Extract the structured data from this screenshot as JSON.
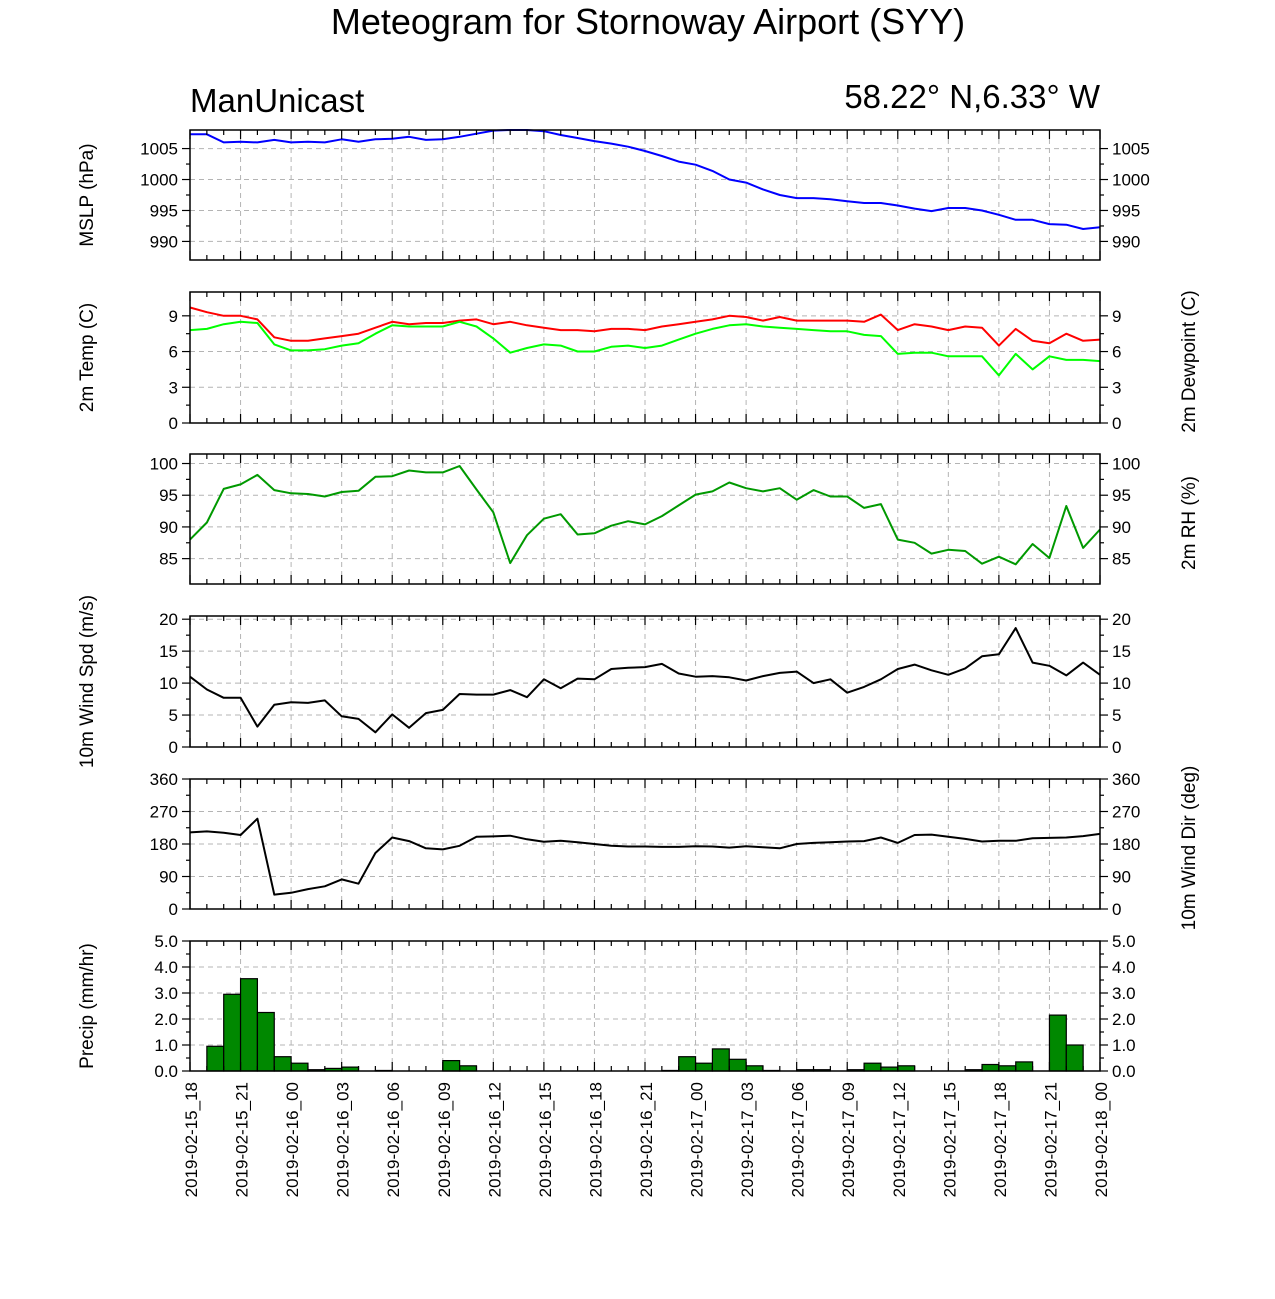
{
  "title": "Meteogram for Stornoway Airport (SYY)",
  "model": "ManUnicast",
  "location": "58.22° N,6.33° W",
  "colors": {
    "mslp": "#0000ff",
    "temp": "#ff0000",
    "dewpoint": "#00ff00",
    "rh": "#009900",
    "wind": "#000000",
    "precip": "#008800"
  },
  "chart_data": {
    "type": "line",
    "x_labels": [
      "2019-02-15_18",
      "2019-02-15_21",
      "2019-02-16_00",
      "2019-02-16_03",
      "2019-02-16_06",
      "2019-02-16_09",
      "2019-02-16_12",
      "2019-02-16_15",
      "2019-02-16_18",
      "2019-02-16_21",
      "2019-02-17_00",
      "2019-02-17_03",
      "2019-02-17_06",
      "2019-02-17_09",
      "2019-02-17_12",
      "2019-02-17_15",
      "2019-02-17_18",
      "2019-02-17_21",
      "2019-02-18_00"
    ],
    "x_range_hours": [
      0,
      54
    ],
    "grid": true,
    "panels": [
      {
        "id": "mslp",
        "ylabel": "MSLP (hPa)",
        "ylim": [
          987,
          1008
        ],
        "yticks": [
          990,
          995,
          1000,
          1005
        ],
        "series": [
          {
            "color": "#0000ff",
            "x": [
              0,
              1,
              2,
              3,
              4,
              5,
              6,
              7,
              8,
              9,
              10,
              11,
              12,
              13,
              14,
              15,
              16,
              17,
              18,
              19,
              20,
              21,
              22,
              23,
              24,
              25,
              26,
              27,
              28,
              29,
              30,
              31,
              32,
              33,
              34,
              35,
              36,
              37,
              38,
              39,
              40,
              41,
              42,
              43,
              44,
              45,
              46,
              47,
              48,
              49,
              50,
              51,
              52,
              53,
              54
            ],
            "values": [
              1007.3,
              1007.3,
              1006.0,
              1006.1,
              1006.0,
              1006.4,
              1006.0,
              1006.1,
              1006.0,
              1006.5,
              1006.1,
              1006.5,
              1006.6,
              1006.9,
              1006.4,
              1006.5,
              1006.9,
              1007.4,
              1007.9,
              1008.0,
              1008.0,
              1007.8,
              1007.2,
              1006.7,
              1006.2,
              1005.8,
              1005.3,
              1004.6,
              1003.8,
              1002.9,
              1002.4,
              1001.4,
              1000.0,
              999.5,
              998.4,
              997.5,
              997.0,
              997.0,
              996.8,
              996.5,
              996.2,
              996.2,
              995.8,
              995.3,
              994.9,
              995.4,
              995.4,
              995.0,
              994.3,
              993.5,
              993.5,
              992.8,
              992.7,
              992.0,
              992.3
            ]
          }
        ]
      },
      {
        "id": "temp",
        "ylabel": "2m Temp (C)",
        "ylabel_right": "2m Dewpoint (C)",
        "ylim": [
          0,
          11
        ],
        "yticks": [
          0,
          3,
          6,
          9
        ],
        "series": [
          {
            "color": "#ff0000",
            "x": [
              0,
              1,
              2,
              3,
              4,
              5,
              6,
              7,
              8,
              9,
              10,
              11,
              12,
              13,
              14,
              15,
              16,
              17,
              18,
              19,
              20,
              21,
              22,
              23,
              24,
              25,
              26,
              27,
              28,
              29,
              30,
              31,
              32,
              33,
              34,
              35,
              36,
              37,
              38,
              39,
              40,
              41,
              42,
              43,
              44,
              45,
              46,
              47,
              48,
              49,
              50,
              51,
              52,
              53,
              54
            ],
            "values": [
              9.7,
              9.3,
              9.0,
              9.0,
              8.7,
              7.2,
              6.9,
              6.9,
              7.1,
              7.3,
              7.5,
              8.0,
              8.5,
              8.3,
              8.4,
              8.4,
              8.6,
              8.7,
              8.3,
              8.5,
              8.2,
              8.0,
              7.8,
              7.8,
              7.7,
              7.9,
              7.9,
              7.8,
              8.1,
              8.3,
              8.5,
              8.7,
              9.0,
              8.9,
              8.6,
              8.9,
              8.6,
              8.6,
              8.6,
              8.6,
              8.5,
              9.1,
              7.8,
              8.3,
              8.1,
              7.8,
              8.1,
              8.0,
              6.5,
              7.9,
              6.9,
              6.7,
              7.5,
              6.9,
              7.0
            ]
          },
          {
            "color": "#00ff00",
            "x": [
              0,
              1,
              2,
              3,
              4,
              5,
              6,
              7,
              8,
              9,
              10,
              11,
              12,
              13,
              14,
              15,
              16,
              17,
              18,
              19,
              20,
              21,
              22,
              23,
              24,
              25,
              26,
              27,
              28,
              29,
              30,
              31,
              32,
              33,
              34,
              35,
              36,
              37,
              38,
              39,
              40,
              41,
              42,
              43,
              44,
              45,
              46,
              47,
              48,
              49,
              50,
              51,
              52,
              53,
              54
            ],
            "values": [
              7.8,
              7.9,
              8.3,
              8.5,
              8.4,
              6.6,
              6.1,
              6.1,
              6.2,
              6.5,
              6.7,
              7.5,
              8.2,
              8.1,
              8.1,
              8.1,
              8.5,
              8.1,
              7.1,
              5.9,
              6.3,
              6.6,
              6.5,
              6.0,
              6.0,
              6.4,
              6.5,
              6.3,
              6.5,
              7.0,
              7.5,
              7.9,
              8.2,
              8.3,
              8.1,
              8.0,
              7.9,
              7.8,
              7.7,
              7.7,
              7.4,
              7.3,
              5.8,
              5.9,
              5.9,
              5.6,
              5.6,
              5.6,
              4.0,
              5.8,
              4.5,
              5.6,
              5.3,
              5.3,
              5.2
            ]
          }
        ]
      },
      {
        "id": "rh",
        "ylabel_right": "2m RH (%)",
        "ylim": [
          81,
          101.5
        ],
        "yticks": [
          85,
          90,
          95,
          100
        ],
        "series": [
          {
            "color": "#009900",
            "x": [
              0,
              1,
              2,
              3,
              4,
              5,
              6,
              7,
              8,
              9,
              10,
              11,
              12,
              13,
              14,
              15,
              16,
              17,
              18,
              19,
              20,
              21,
              22,
              23,
              24,
              25,
              26,
              27,
              28,
              29,
              30,
              31,
              32,
              33,
              34,
              35,
              36,
              37,
              38,
              39,
              40,
              41,
              42,
              43,
              44,
              45,
              46,
              47,
              48,
              49,
              50,
              51,
              52,
              53,
              54
            ],
            "values": [
              88.0,
              90.7,
              96.0,
              96.7,
              98.2,
              95.8,
              95.3,
              95.2,
              94.8,
              95.5,
              95.7,
              97.9,
              98.0,
              98.9,
              98.6,
              98.6,
              99.6,
              95.9,
              92.3,
              84.3,
              88.7,
              91.3,
              92.0,
              88.8,
              89.0,
              90.2,
              90.9,
              90.4,
              91.7,
              93.4,
              95.1,
              95.6,
              97.0,
              96.1,
              95.6,
              96.1,
              94.3,
              95.8,
              94.8,
              94.8,
              93.0,
              93.6,
              88.0,
              87.5,
              85.8,
              86.4,
              86.2,
              84.2,
              85.3,
              84.1,
              87.3,
              85.1,
              93.3,
              86.7,
              89.6
            ]
          }
        ]
      },
      {
        "id": "wspd",
        "ylabel": "10m Wind Spd (m/s)",
        "ylim": [
          0,
          20.5
        ],
        "yticks": [
          0,
          5,
          10,
          15,
          20
        ],
        "series": [
          {
            "color": "#000000",
            "x": [
              0,
              1,
              2,
              3,
              4,
              5,
              6,
              7,
              8,
              9,
              10,
              11,
              12,
              13,
              14,
              15,
              16,
              17,
              18,
              19,
              20,
              21,
              22,
              23,
              24,
              25,
              26,
              27,
              28,
              29,
              30,
              31,
              32,
              33,
              34,
              35,
              36,
              37,
              38,
              39,
              40,
              41,
              42,
              43,
              44,
              45,
              46,
              47,
              48,
              49,
              50,
              51,
              52,
              53,
              54
            ],
            "values": [
              11.0,
              9.0,
              7.7,
              7.7,
              3.2,
              6.6,
              7.0,
              6.9,
              7.3,
              4.8,
              4.4,
              2.3,
              5.1,
              3.0,
              5.3,
              5.8,
              8.3,
              8.2,
              8.2,
              8.9,
              7.8,
              10.6,
              9.2,
              10.7,
              10.6,
              12.2,
              12.4,
              12.5,
              13.0,
              11.5,
              11.0,
              11.1,
              10.9,
              10.4,
              11.1,
              11.6,
              11.8,
              10.0,
              10.6,
              8.5,
              9.4,
              10.6,
              12.2,
              12.9,
              12.0,
              11.3,
              12.3,
              14.2,
              14.5,
              18.6,
              13.2,
              12.7,
              11.2,
              13.2,
              11.3
            ]
          }
        ]
      },
      {
        "id": "wdir",
        "ylabel_right": "10m Wind Dir (deg)",
        "ylim": [
          0,
          360
        ],
        "yticks": [
          0,
          90,
          180,
          270,
          360
        ],
        "series": [
          {
            "color": "#000000",
            "x": [
              0,
              1,
              2,
              3,
              4,
              5,
              6,
              7,
              8,
              9,
              10,
              11,
              12,
              13,
              14,
              15,
              16,
              17,
              18,
              19,
              20,
              21,
              22,
              23,
              24,
              25,
              26,
              27,
              28,
              29,
              30,
              31,
              32,
              33,
              34,
              35,
              36,
              37,
              38,
              39,
              40,
              41,
              42,
              43,
              44,
              45,
              46,
              47,
              48,
              49,
              50,
              51,
              52,
              53,
              54
            ],
            "values": [
              212,
              215,
              211,
              205,
              250,
              40,
              45,
              55,
              63,
              82,
              70,
              155,
              198,
              188,
              168,
              165,
              175,
              200,
              201,
              203,
              193,
              186,
              189,
              185,
              180,
              175,
              173,
              173,
              172,
              172,
              174,
              173,
              170,
              174,
              171,
              168,
              180,
              183,
              185,
              187,
              188,
              198,
              183,
              205,
              206,
              200,
              194,
              187,
              189,
              189,
              196,
              197,
              198,
              202,
              208
            ]
          }
        ]
      },
      {
        "id": "precip",
        "type": "bar",
        "ylabel": "Precip (mm/hr)",
        "ylim": [
          0,
          5.0
        ],
        "yticks": [
          0.0,
          1.0,
          2.0,
          3.0,
          4.0,
          5.0
        ],
        "series": [
          {
            "color": "#008800",
            "x": [
              0.5,
              1.5,
              2.5,
              3.5,
              4.5,
              5.5,
              6.5,
              7.5,
              8.5,
              9.5,
              10.5,
              11.5,
              12.5,
              13.5,
              14.5,
              15.5,
              16.5,
              17.5,
              18.5,
              19.5,
              20.5,
              21.5,
              22.5,
              23.5,
              24.5,
              25.5,
              26.5,
              27.5,
              28.5,
              29.5,
              30.5,
              31.5,
              32.5,
              33.5,
              34.5,
              35.5,
              36.5,
              37.5,
              38.5,
              39.5,
              40.5,
              41.5,
              42.5,
              43.5,
              44.5,
              45.5,
              46.5,
              47.5,
              48.5,
              49.5,
              50.5,
              51.5,
              52.5,
              53.5
            ],
            "values": [
              0,
              0.95,
              2.95,
              3.55,
              2.25,
              0.55,
              0.3,
              0.05,
              0.1,
              0.15,
              0,
              0.02,
              0,
              0,
              0,
              0.4,
              0.2,
              0,
              0,
              0,
              0,
              0,
              0,
              0,
              0,
              0,
              0,
              0,
              0.02,
              0.55,
              0.3,
              0.85,
              0.45,
              0.2,
              0.02,
              0,
              0.05,
              0.05,
              0,
              0.05,
              0.3,
              0.15,
              0.2,
              0,
              0,
              0,
              0.05,
              0.25,
              0.2,
              0.35,
              0,
              2.15,
              1.0,
              0
            ]
          }
        ]
      }
    ]
  }
}
